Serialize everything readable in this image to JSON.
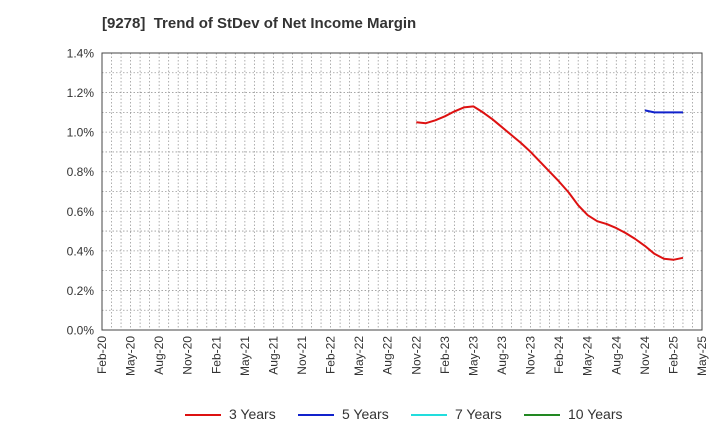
{
  "chart_data": {
    "type": "line",
    "title": "[9278]  Trend of StDev of Net Income Margin",
    "xlabel": "",
    "ylabel": "",
    "x": [
      "Feb-20",
      "May-20",
      "Aug-20",
      "Nov-20",
      "Feb-21",
      "May-21",
      "Aug-21",
      "Nov-21",
      "Feb-22",
      "May-22",
      "Aug-22",
      "Nov-22",
      "Feb-23",
      "May-23",
      "Aug-23",
      "Nov-23",
      "Feb-24",
      "May-24",
      "Aug-24",
      "Nov-24",
      "Feb-25",
      "May-25"
    ],
    "ylim": [
      0,
      1.4
    ],
    "yticks": [
      "0.0%",
      "0.2%",
      "0.4%",
      "0.6%",
      "0.8%",
      "1.0%",
      "1.2%",
      "1.4%"
    ],
    "grid": true,
    "legend_position": "bottom",
    "series": [
      {
        "name": "3 Years",
        "color": "#dd1111",
        "points": [
          [
            "Nov-22",
            1.05
          ],
          [
            "Dec-22",
            1.045
          ],
          [
            "Jan-23",
            1.06
          ],
          [
            "Feb-23",
            1.08
          ],
          [
            "Mar-23",
            1.105
          ],
          [
            "Apr-23",
            1.125
          ],
          [
            "May-23",
            1.13
          ],
          [
            "Jun-23",
            1.1
          ],
          [
            "Jul-23",
            1.065
          ],
          [
            "Aug-23",
            1.025
          ],
          [
            "Sep-23",
            0.985
          ],
          [
            "Oct-23",
            0.945
          ],
          [
            "Nov-23",
            0.9
          ],
          [
            "Dec-23",
            0.85
          ],
          [
            "Jan-24",
            0.8
          ],
          [
            "Feb-24",
            0.75
          ],
          [
            "Mar-24",
            0.695
          ],
          [
            "Apr-24",
            0.63
          ],
          [
            "May-24",
            0.58
          ],
          [
            "Jun-24",
            0.55
          ],
          [
            "Jul-24",
            0.535
          ],
          [
            "Aug-24",
            0.515
          ],
          [
            "Sep-24",
            0.49
          ],
          [
            "Oct-24",
            0.46
          ],
          [
            "Nov-24",
            0.425
          ],
          [
            "Dec-24",
            0.385
          ],
          [
            "Jan-25",
            0.36
          ],
          [
            "Feb-25",
            0.355
          ],
          [
            "Mar-25",
            0.365
          ]
        ]
      },
      {
        "name": "5 Years",
        "color": "#1122cc",
        "points": [
          [
            "Nov-24",
            1.11
          ],
          [
            "Dec-24",
            1.1
          ],
          [
            "Jan-25",
            1.1
          ],
          [
            "Feb-25",
            1.1
          ],
          [
            "Mar-25",
            1.1
          ]
        ]
      },
      {
        "name": "7 Years",
        "color": "#22dddd",
        "points": []
      },
      {
        "name": "10 Years",
        "color": "#228822",
        "points": []
      }
    ]
  }
}
